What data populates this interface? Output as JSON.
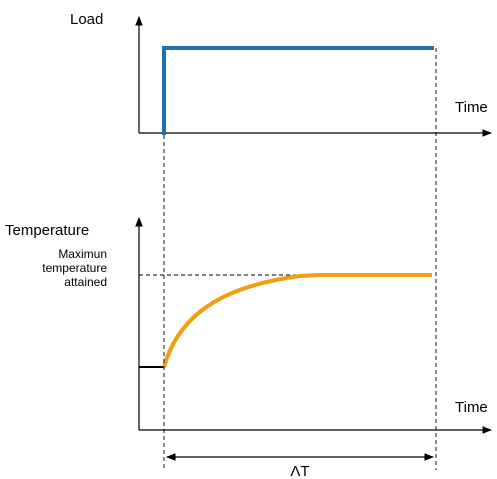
{
  "top_chart": {
    "y_label": "Load",
    "x_label": "Time",
    "series_color": "#1f6fb2"
  },
  "bottom_chart": {
    "y_label": "Temperature",
    "x_label": "Time",
    "annotation_lines": [
      "Maximun",
      "temperature",
      "attained"
    ],
    "series_color": "#f29d12"
  },
  "interval": {
    "label": "ΛT"
  }
}
